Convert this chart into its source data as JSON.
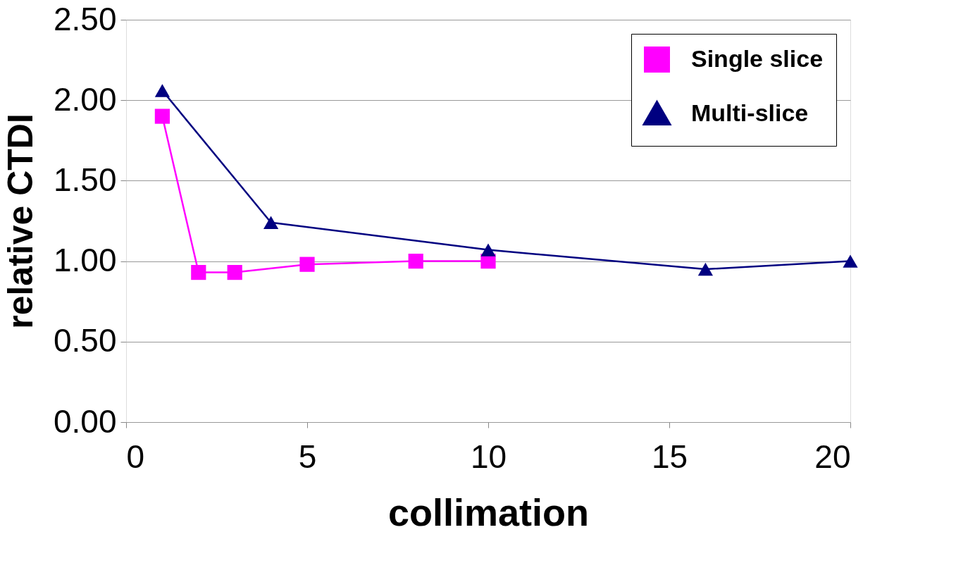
{
  "chart_data": {
    "type": "line",
    "xlabel": "collimation",
    "ylabel": "relative CTDI",
    "xlim": [
      0,
      20
    ],
    "xticks": [
      0,
      5,
      10,
      15,
      20
    ],
    "ylim": [
      0,
      2.5
    ],
    "yticks": [
      {
        "value": 0,
        "label": "0.00"
      },
      {
        "value": 0.5,
        "label": "0.50"
      },
      {
        "value": 1,
        "label": "1.00"
      },
      {
        "value": 1.5,
        "label": "1.50"
      },
      {
        "value": 2,
        "label": "2.00"
      },
      {
        "value": 2.5,
        "label": "2.50"
      }
    ],
    "grid": "y",
    "legend": "top right",
    "series": [
      {
        "name": "Single slice",
        "color": "#ff00ff",
        "marker": "square",
        "x": [
          1,
          2,
          3,
          5,
          8,
          10
        ],
        "values": [
          1.9,
          0.93,
          0.93,
          0.98,
          1.0,
          1.0
        ]
      },
      {
        "name": "Multi-slice",
        "color": "#000080",
        "marker": "triangle",
        "x": [
          1,
          4,
          10,
          16,
          20
        ],
        "values": [
          2.06,
          1.24,
          1.07,
          0.95,
          1.0
        ]
      }
    ]
  }
}
